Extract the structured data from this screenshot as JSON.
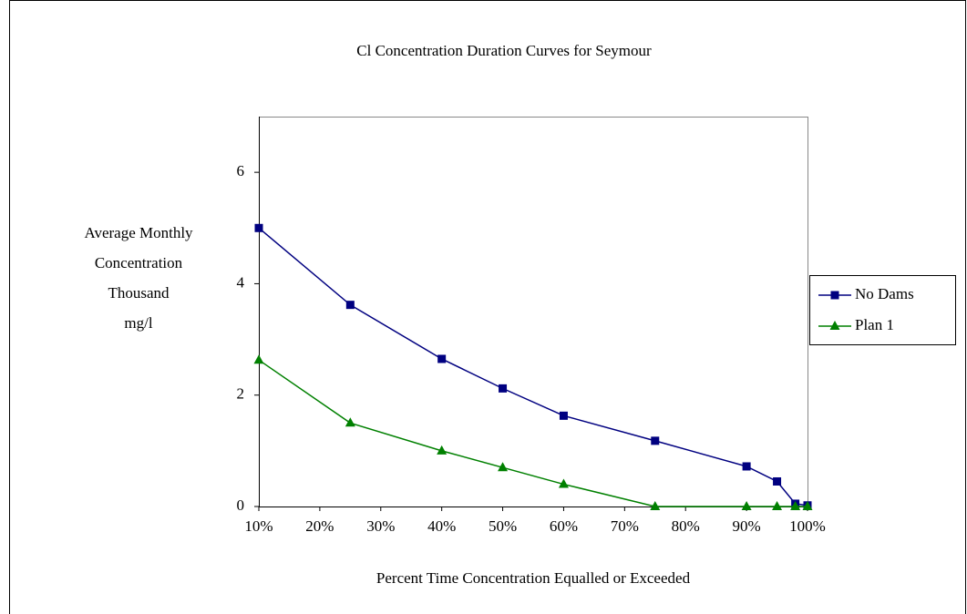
{
  "chart_data": {
    "type": "line",
    "title": "Cl Concentration Duration Curves for Seymour",
    "ylabel": [
      "Average Monthly",
      "Concentration",
      "Thousand",
      "mg/l"
    ],
    "xlabel": "Percent Time Concentration Equalled or Exceeded",
    "x": [
      10,
      25,
      40,
      50,
      60,
      75,
      90,
      95,
      98,
      100
    ],
    "series": [
      {
        "name": "No Dams",
        "color": "#000080",
        "marker": "square",
        "values": [
          5.0,
          3.62,
          2.65,
          2.12,
          1.63,
          1.18,
          0.72,
          0.45,
          0.05,
          0.02
        ]
      },
      {
        "name": "Plan 1",
        "color": "#008000",
        "marker": "triangle",
        "values": [
          2.63,
          1.5,
          1.0,
          0.7,
          0.4,
          0.0,
          0.0,
          0.0,
          0.0,
          0.0
        ]
      }
    ],
    "xlim": [
      10,
      100
    ],
    "xticks": [
      {
        "value": 10,
        "label": "10%"
      },
      {
        "value": 20,
        "label": "20%"
      },
      {
        "value": 30,
        "label": "30%"
      },
      {
        "value": 40,
        "label": "40%"
      },
      {
        "value": 50,
        "label": "50%"
      },
      {
        "value": 60,
        "label": "60%"
      },
      {
        "value": 70,
        "label": "70%"
      },
      {
        "value": 80,
        "label": "80%"
      },
      {
        "value": 90,
        "label": "90%"
      },
      {
        "value": 100,
        "label": "100%"
      }
    ],
    "ylim": [
      0,
      7
    ],
    "yticks": [
      0,
      2,
      4,
      6
    ],
    "legend": "right"
  }
}
